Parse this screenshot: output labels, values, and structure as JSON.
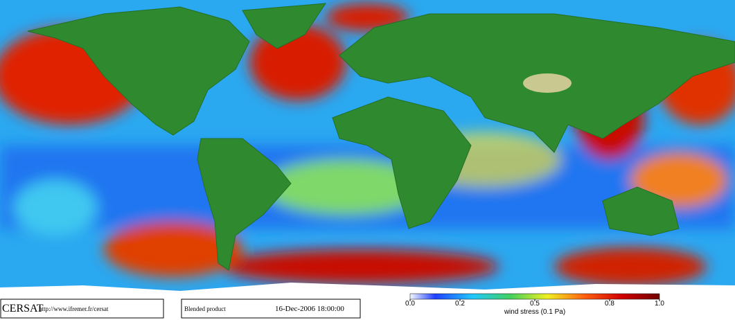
{
  "footer": {
    "logo": "CERSAT",
    "url": "http://www.ifremer.fr/cersat",
    "product": "Blended product",
    "date": "16-Dec-2006 18:00:00"
  },
  "colorbar": {
    "label": "wind stress (0.1 Pa)",
    "lim": [
      0,
      1
    ],
    "ticks": [
      {
        "value": 0,
        "label": "0.0"
      },
      0.2,
      0.5,
      0.8,
      {
        "value": 1,
        "label": "1.0"
      }
    ]
  }
}
